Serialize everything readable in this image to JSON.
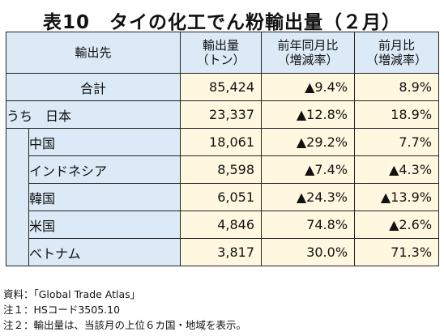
{
  "title": "表10　タイの化工でん粉輸出量（２月）",
  "table": {
    "headers": {
      "destination": "輸出先",
      "volume_line1": "輸出量",
      "volume_line2": "（トン）",
      "yoy_line1": "前年同月比",
      "yoy_line2": "（増減率）",
      "mom_line1": "前月比",
      "mom_line2": "（増減率）"
    },
    "total": {
      "name": "合計",
      "volume": "85,424",
      "yoy": "▲9.4%",
      "mom": "8.9%"
    },
    "japan": {
      "name": "うち　日本",
      "volume": "23,337",
      "yoy": "▲12.8%",
      "mom": "18.9%"
    },
    "rows": [
      {
        "name": "中国",
        "volume": "18,061",
        "yoy": "▲29.2%",
        "mom": "7.7%"
      },
      {
        "name": "インドネシア",
        "volume": "8,598",
        "yoy": "▲7.4%",
        "mom": "▲4.3%"
      },
      {
        "name": "韓国",
        "volume": "6,051",
        "yoy": "▲24.3%",
        "mom": "▲13.9%"
      },
      {
        "name": "米国",
        "volume": "4,846",
        "yoy": "74.8%",
        "mom": "▲2.6%"
      },
      {
        "name": "ベトナム",
        "volume": "3,817",
        "yoy": "30.0%",
        "mom": "71.3%"
      }
    ]
  },
  "notes": {
    "source": "資料：「Global Trade Atlas」",
    "note1": "注１：HSコード3505.10",
    "note2": "注２：輸出量は、当該月の上位６カ国・地域を表示。"
  }
}
